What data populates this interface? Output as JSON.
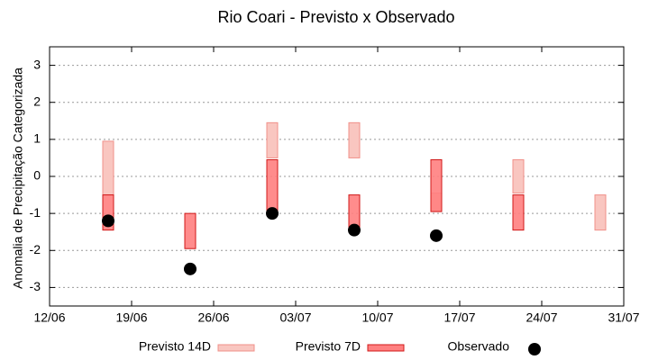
{
  "chart_data": {
    "type": "range-scatter",
    "title": "Rio Coari - Previsto x Observado",
    "y_label": "Anomalia de Precipitação Categorizada",
    "x": [
      "17/06",
      "24/06",
      "01/07",
      "08/07",
      "15/07",
      "22/07",
      "29/07"
    ],
    "xlim": [
      "12/06",
      "31/07"
    ],
    "xticks": [
      "12/06",
      "19/06",
      "26/06",
      "03/07",
      "10/07",
      "17/07",
      "24/07",
      "31/07"
    ],
    "ylim": [
      -3.5,
      3.5
    ],
    "yticks": [
      -3,
      -2,
      -1,
      0,
      1,
      2,
      3
    ],
    "grid": true,
    "series": [
      {
        "name": "Previsto 14D",
        "color": "#f9c6c0",
        "edge": "#f0908a",
        "low": [
          -0.5,
          null,
          0.5,
          0.5,
          -0.95,
          -0.45,
          -1.45
        ],
        "high": [
          0.95,
          null,
          1.45,
          1.45,
          -0.45,
          0.45,
          -0.5
        ]
      },
      {
        "name": "Previsto 7D",
        "color": "#ff8080",
        "edge": "#d01818",
        "low": [
          -1.45,
          -1.95,
          -1.0,
          -1.45,
          -0.95,
          -1.45,
          null
        ],
        "high": [
          -0.5,
          -1.0,
          0.45,
          -0.5,
          0.45,
          -0.5,
          null
        ]
      },
      {
        "name": "Observado",
        "color": "#000000",
        "values": [
          -1.2,
          -2.5,
          -1.0,
          -1.45,
          -1.6,
          null,
          null
        ]
      }
    ]
  }
}
